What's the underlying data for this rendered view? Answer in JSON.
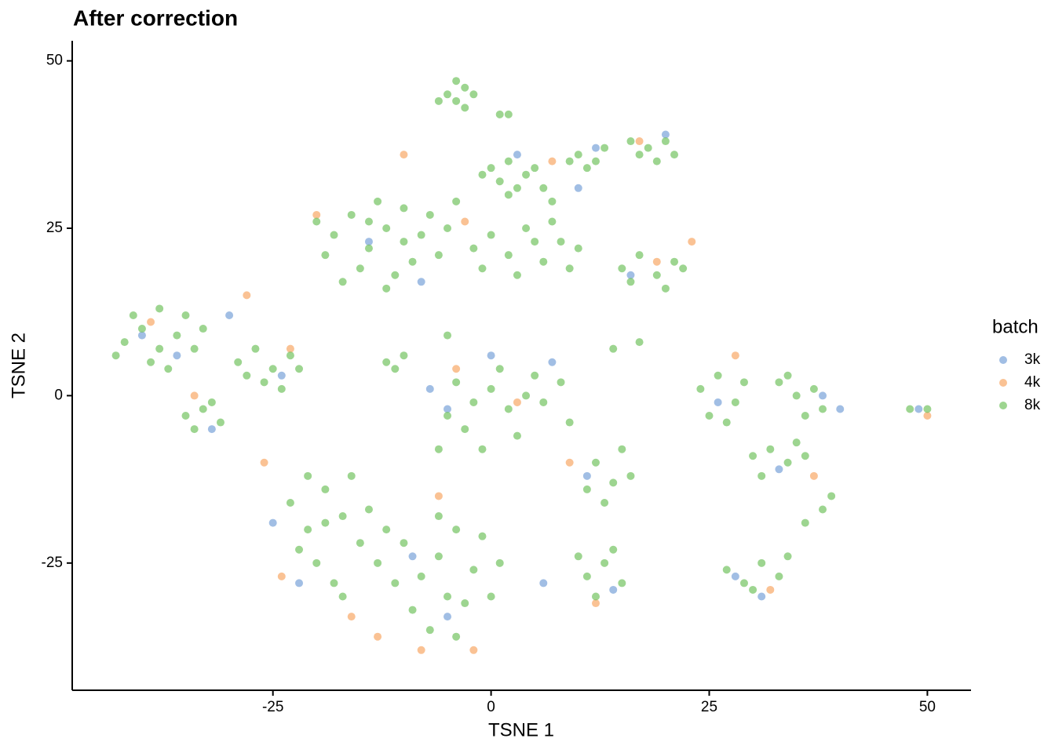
{
  "chart_data": {
    "type": "scatter",
    "title": "After correction",
    "x_label": "TSNE 1",
    "y_label": "TSNE 2",
    "legend_title": "batch",
    "legend": "right",
    "xlim": [
      -48,
      55
    ],
    "ylim": [
      -44,
      53
    ],
    "xticks": [
      -25,
      0,
      25,
      50
    ],
    "yticks": [
      -25,
      0,
      25,
      50
    ],
    "grid": false,
    "series": [
      {
        "name": "3k",
        "color": "#6f9bd5",
        "x": [
          -40,
          -36,
          -30,
          -24,
          -32,
          -14,
          -8,
          3,
          10,
          12,
          20,
          16,
          -5,
          -7,
          0,
          7,
          11,
          14,
          26,
          38,
          33,
          28,
          31,
          -25,
          -22,
          -9,
          -5,
          40,
          49,
          6
        ],
        "y": [
          9,
          6,
          12,
          3,
          -5,
          23,
          17,
          36,
          31,
          37,
          39,
          18,
          -2,
          1,
          6,
          5,
          -12,
          -29,
          -1,
          0,
          -11,
          -27,
          -30,
          -19,
          -28,
          -24,
          -33,
          -2,
          -2,
          -28
        ]
      },
      {
        "name": "4k",
        "color": "#f8a25a",
        "x": [
          -39,
          -28,
          -20,
          -10,
          -3,
          7,
          17,
          23,
          -26,
          -24,
          -13,
          -8,
          -2,
          -16,
          -4,
          3,
          9,
          12,
          28,
          37,
          32,
          -23,
          -34,
          19,
          50,
          -6
        ],
        "y": [
          11,
          15,
          27,
          36,
          26,
          35,
          38,
          23,
          -10,
          -27,
          -36,
          -38,
          -38,
          -33,
          4,
          -1,
          -10,
          -31,
          6,
          -12,
          -29,
          7,
          0,
          20,
          -3,
          -15
        ]
      },
      {
        "name": "8k",
        "color": "#69bf54",
        "x": [
          -5,
          -3,
          -4,
          -6,
          -2,
          -4,
          -3,
          2,
          1,
          0,
          2,
          4,
          1,
          3,
          -1,
          5,
          6,
          2,
          7,
          10,
          12,
          11,
          13,
          9,
          18,
          20,
          17,
          21,
          19,
          16,
          -18,
          -16,
          -14,
          -12,
          -10,
          -8,
          -6,
          -15,
          -11,
          -19,
          -13,
          -9,
          -7,
          -5,
          -17,
          -12,
          -20,
          -10,
          -14,
          -4,
          0,
          2,
          4,
          6,
          8,
          -1,
          3,
          7,
          9,
          5,
          -2,
          10,
          15,
          17,
          19,
          21,
          16,
          20,
          22,
          -42,
          -40,
          -38,
          -36,
          -39,
          -41,
          -35,
          -37,
          -34,
          -43,
          -33,
          -38,
          -29,
          -27,
          -25,
          -23,
          -26,
          -24,
          -28,
          -22,
          -35,
          -33,
          -31,
          -34,
          -32,
          -12,
          -11,
          -10,
          -5,
          -4,
          -2,
          0,
          2,
          4,
          -3,
          1,
          5,
          -5,
          3,
          6,
          -1,
          8,
          -6,
          9,
          12,
          14,
          13,
          15,
          11,
          16,
          11,
          13,
          15,
          12,
          14,
          10,
          14,
          17,
          24,
          26,
          28,
          27,
          25,
          29,
          33,
          35,
          37,
          36,
          34,
          38,
          30,
          32,
          34,
          36,
          31,
          35,
          -23,
          -21,
          -19,
          -17,
          -15,
          -20,
          -18,
          -16,
          -14,
          -22,
          -19,
          -13,
          -17,
          -21,
          -12,
          -10,
          -8,
          -6,
          -4,
          -2,
          -9,
          -5,
          -7,
          -3,
          -1,
          -11,
          -6,
          1,
          -4,
          0,
          27,
          29,
          31,
          33,
          30,
          34,
          36,
          38,
          39,
          48,
          50
        ],
        "y": [
          45,
          46,
          44,
          44,
          45,
          47,
          43,
          42,
          42,
          34,
          35,
          33,
          32,
          31,
          33,
          34,
          31,
          30,
          29,
          36,
          35,
          34,
          37,
          35,
          37,
          38,
          36,
          36,
          35,
          38,
          24,
          27,
          22,
          25,
          28,
          24,
          21,
          19,
          18,
          21,
          29,
          20,
          27,
          25,
          17,
          16,
          26,
          23,
          26,
          29,
          24,
          21,
          25,
          20,
          23,
          19,
          18,
          26,
          19,
          23,
          22,
          22,
          19,
          21,
          18,
          20,
          17,
          16,
          19,
          8,
          10,
          7,
          9,
          5,
          12,
          12,
          4,
          7,
          6,
          10,
          13,
          5,
          7,
          4,
          6,
          2,
          1,
          3,
          4,
          -3,
          -2,
          -4,
          -5,
          -1,
          5,
          4,
          6,
          9,
          2,
          -1,
          1,
          -2,
          0,
          -5,
          4,
          3,
          -3,
          -6,
          -1,
          -8,
          2,
          -8,
          -4,
          -10,
          -13,
          -16,
          -8,
          -14,
          -12,
          -27,
          -25,
          -28,
          -30,
          -23,
          -24,
          7,
          8,
          1,
          3,
          -1,
          -4,
          -3,
          2,
          2,
          0,
          1,
          -3,
          3,
          -2,
          -9,
          -8,
          -10,
          -9,
          -12,
          -7,
          -16,
          -20,
          -14,
          -18,
          -22,
          -25,
          -28,
          -12,
          -17,
          -23,
          -19,
          -25,
          -30,
          -12,
          -20,
          -22,
          -27,
          -24,
          -20,
          -26,
          -32,
          -30,
          -35,
          -31,
          -21,
          -28,
          -18,
          -25,
          -36,
          -30,
          -26,
          -28,
          -25,
          -27,
          -29,
          -24,
          -19,
          -17,
          -15,
          -2,
          -2
        ]
      }
    ]
  }
}
